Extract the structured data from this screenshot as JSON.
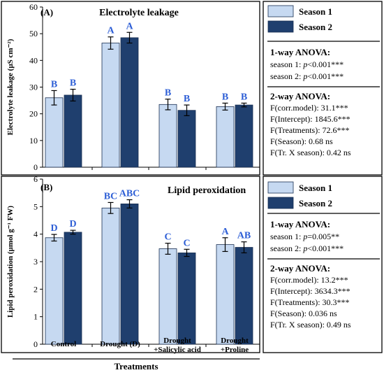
{
  "chart_data": [
    {
      "type": "bar",
      "panel_label": "(A)",
      "title": "Electrolyte leakage",
      "ylabel": "Electrolyte leakage (µS cm⁻²)",
      "ylim": [
        0,
        60
      ],
      "yticks": [
        0,
        10,
        20,
        30,
        40,
        50,
        60
      ],
      "categories": [
        "Control",
        "Drought (D)",
        "Drought +Salicylic acid",
        "Drought +Proline"
      ],
      "series": [
        {
          "name": "Season 1",
          "color": "#c6d9f1",
          "values": [
            26.0,
            46.5,
            23.5,
            22.7
          ],
          "errors": [
            2.7,
            2.3,
            2.0,
            1.3
          ],
          "letters": [
            "B",
            "A",
            "B",
            "B"
          ]
        },
        {
          "name": "Season 2",
          "color": "#1f3f6e",
          "values": [
            27.0,
            48.5,
            21.3,
            23.3
          ],
          "errors": [
            2.2,
            2.0,
            2.0,
            0.7
          ],
          "letters": [
            "B",
            "A",
            "B",
            "B"
          ]
        }
      ],
      "stats": {
        "oneway_title": "1-way ANOVA:",
        "oneway": [
          {
            "label": "season 1: ",
            "p": "p",
            "rest": "<0.001***"
          },
          {
            "label": "season 2: ",
            "p": "p",
            "rest": "<0.001***"
          }
        ],
        "twoway_title": "2-way ANOVA:",
        "twoway": [
          "F(corr.model): 31.1***",
          "F(Intercept): 1845.6***",
          "F(Treatments): 72.6***",
          "F(Season): 0.68 ns",
          "F(Tr. X  season): 0.42 ns"
        ]
      }
    },
    {
      "type": "bar",
      "panel_label": "(B)",
      "title": "Lipid peroxidation",
      "ylabel": "Lipid peroxidation (µmol g⁻¹ FW)",
      "ylim": [
        0,
        6
      ],
      "yticks": [
        0,
        1,
        2,
        3,
        4,
        5,
        6
      ],
      "categories": [
        "Control",
        "Drought (D)",
        "Drought +Salicylic acid",
        "Drought +Proline"
      ],
      "series": [
        {
          "name": "Season 1",
          "color": "#c6d9f1",
          "values": [
            3.87,
            4.95,
            3.47,
            3.62
          ],
          "errors": [
            0.12,
            0.2,
            0.2,
            0.25
          ],
          "letters": [
            "D",
            "BC",
            "C",
            "A"
          ]
        },
        {
          "name": "Season 2",
          "color": "#1f3f6e",
          "values": [
            4.07,
            5.1,
            3.32,
            3.52
          ],
          "errors": [
            0.07,
            0.15,
            0.13,
            0.2
          ],
          "letters": [
            "D",
            "ABC",
            "C",
            "AB"
          ]
        }
      ],
      "stats": {
        "oneway_title": "1-way ANOVA:",
        "oneway": [
          {
            "label": "season 1: ",
            "p": "p",
            "rest": "=0.005**"
          },
          {
            "label": "season 2: ",
            "p": "p",
            "rest": "<0.001***"
          }
        ],
        "twoway_title": "2-way ANOVA:",
        "twoway": [
          "F(corr.model): 13.2***",
          "F(Intercept): 3634.3***",
          "F(Treatments): 30.3***",
          "F(Season): 0.036 ns",
          "F(Tr. X  season): 0.49 ns"
        ]
      }
    }
  ],
  "x_tick_labels": [
    [
      "Control"
    ],
    [
      "Drought (D)"
    ],
    [
      "Drought",
      "+Salicylic acid"
    ],
    [
      "Drought",
      "+Proline"
    ]
  ],
  "xlabel": "Treatments",
  "colors": {
    "season1": "#c6d9f1",
    "season2": "#1f3f6e",
    "letters": "#2e5fd6",
    "text": "#000000"
  }
}
